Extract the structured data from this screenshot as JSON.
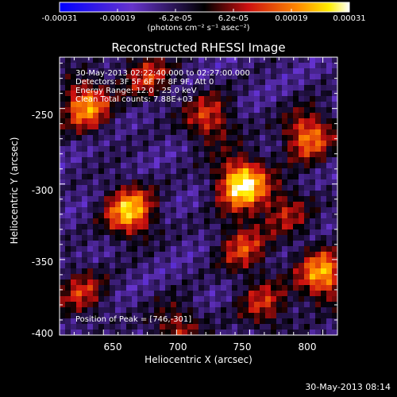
{
  "chart_data": {
    "type": "heatmap",
    "title": "Reconstructed RHESSI Image",
    "xlabel": "Heliocentric X (arcsec)",
    "ylabel": "Heliocentric Y (arcsec)",
    "xlim": [
      620,
      810
    ],
    "ylim": [
      -400,
      -216
    ],
    "x_ticks": [
      "650",
      "700",
      "750",
      "800"
    ],
    "y_ticks": [
      "-250",
      "-300",
      "-350",
      "-400"
    ],
    "colorbar": {
      "range": [
        -0.00031,
        0.00031
      ],
      "ticks": [
        "-0.00031",
        "-0.00019",
        "-6.2e-05",
        "6.2e-05",
        "0.00019",
        "0.00031"
      ],
      "units_label": "(photons cm⁻² s⁻¹ asec⁻²)",
      "colormap": "blue-purple-black-red-yellow-white"
    },
    "annotations": [
      "30-May-2013 02:22:40.000 to 02:27:00.000",
      "Detectors: 3F 5F 6F 7F 8F 9F, Att 0",
      "Energy Range: 12.0 - 25.0 keV",
      "Clean    Total counts: 7.88E+03"
    ],
    "peak_label": "Position of Peak = [746,-301]",
    "peak": [
      746,
      -301
    ],
    "sources": [
      {
        "x": 745,
        "y": -300,
        "value": 0.00031
      },
      {
        "x": 668,
        "y": -318,
        "value": 0.00024
      },
      {
        "x": 638,
        "y": -248,
        "value": 0.0002
      },
      {
        "x": 790,
        "y": -268,
        "value": 0.00018
      },
      {
        "x": 800,
        "y": -360,
        "value": 0.00022
      },
      {
        "x": 722,
        "y": -257,
        "value": 0.00012
      },
      {
        "x": 680,
        "y": -228,
        "value": 0.0001
      },
      {
        "x": 745,
        "y": -342,
        "value": 0.00011
      },
      {
        "x": 760,
        "y": -380,
        "value": 9e-05
      },
      {
        "x": 635,
        "y": -372,
        "value": 9e-05
      },
      {
        "x": 700,
        "y": -395,
        "value": 8e-05
      },
      {
        "x": 775,
        "y": -318,
        "value": 7e-05
      }
    ]
  },
  "footer_timestamp": "30-May-2013 08:14"
}
